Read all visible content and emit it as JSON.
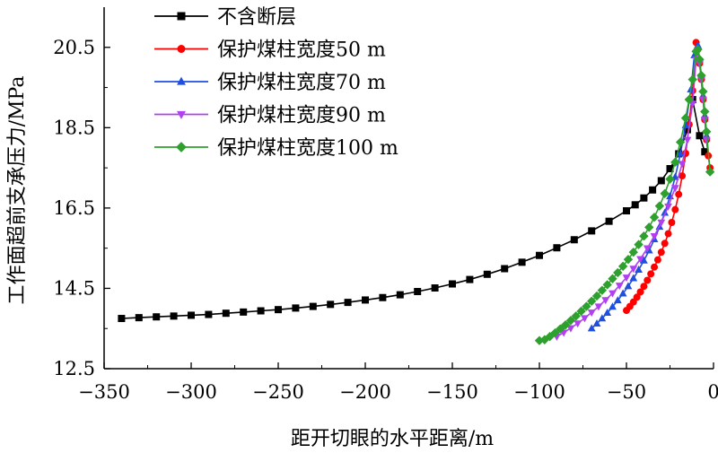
{
  "chart_data": {
    "type": "line",
    "xlabel": "距开切眼的水平距离/m",
    "ylabel": "工作面超前支承压力/MPa",
    "xlim": [
      -350,
      0
    ],
    "ylim": [
      12.5,
      21.5
    ],
    "xticks": [
      -350,
      -300,
      -250,
      -200,
      -150,
      -100,
      -50,
      0
    ],
    "xtick_labels": [
      "−350",
      "−300",
      "−250",
      "−200",
      "−150",
      "−100",
      "−50",
      "0"
    ],
    "yticks": [
      12.5,
      14.5,
      16.5,
      18.5,
      20.5
    ],
    "ytick_labels": [
      "12.5",
      "14.5",
      "16.5",
      "18.5",
      "20.5"
    ],
    "grid": false,
    "legend_position": "top-left",
    "series": [
      {
        "name": "不含断层",
        "color": "#000000",
        "marker": "square",
        "x": [
          -340,
          -330,
          -320,
          -310,
          -300,
          -290,
          -280,
          -270,
          -260,
          -250,
          -240,
          -230,
          -220,
          -210,
          -200,
          -190,
          -180,
          -170,
          -160,
          -150,
          -140,
          -130,
          -120,
          -110,
          -100,
          -90,
          -80,
          -70,
          -60,
          -50,
          -45,
          -40,
          -35,
          -30,
          -25,
          -20,
          -15,
          -12,
          -8,
          -5
        ],
        "y": [
          13.75,
          13.77,
          13.79,
          13.81,
          13.83,
          13.85,
          13.88,
          13.91,
          13.94,
          13.97,
          14.01,
          14.05,
          14.1,
          14.15,
          14.21,
          14.27,
          14.34,
          14.42,
          14.51,
          14.61,
          14.72,
          14.85,
          14.99,
          15.15,
          15.32,
          15.51,
          15.71,
          15.93,
          16.17,
          16.43,
          16.58,
          16.75,
          16.95,
          17.18,
          17.48,
          17.85,
          18.45,
          19.2,
          18.3,
          17.9
        ]
      },
      {
        "name": "保护煤柱宽度50 m",
        "color": "#ff0000",
        "marker": "circle",
        "x": [
          -50,
          -48,
          -46,
          -44,
          -42,
          -40,
          -38,
          -36,
          -34,
          -32,
          -30,
          -28,
          -26,
          -24,
          -22,
          -20,
          -18,
          -16,
          -14,
          -12,
          -10,
          -9,
          -8,
          -7,
          -6,
          -5,
          -4,
          -3,
          -2
        ],
        "y": [
          13.95,
          14.05,
          14.16,
          14.28,
          14.41,
          14.55,
          14.7,
          14.86,
          15.03,
          15.21,
          15.4,
          15.62,
          15.86,
          16.14,
          16.46,
          16.84,
          17.3,
          17.86,
          18.58,
          19.42,
          20.62,
          20.45,
          20.1,
          19.7,
          19.2,
          18.7,
          18.2,
          17.8,
          17.5
        ]
      },
      {
        "name": "保护煤柱宽度70 m",
        "color": "#1f4fe0",
        "marker": "triangle-up",
        "x": [
          -70,
          -67,
          -64,
          -61,
          -58,
          -55,
          -52,
          -49,
          -46,
          -43,
          -40,
          -37,
          -34,
          -31,
          -28,
          -25,
          -22,
          -19,
          -16,
          -13,
          -11,
          -9,
          -8,
          -7,
          -6,
          -5,
          -4
        ],
        "y": [
          13.5,
          13.62,
          13.75,
          13.89,
          14.04,
          14.2,
          14.37,
          14.55,
          14.75,
          14.96,
          15.19,
          15.44,
          15.72,
          16.03,
          16.38,
          16.79,
          17.27,
          17.85,
          18.56,
          19.45,
          20.3,
          20.55,
          20.2,
          19.8,
          19.3,
          18.8,
          18.3
        ]
      },
      {
        "name": "保护煤柱宽度90 m",
        "color": "#b040f0",
        "marker": "triangle-down",
        "x": [
          -90,
          -86,
          -82,
          -78,
          -74,
          -70,
          -66,
          -62,
          -58,
          -54,
          -50,
          -46,
          -42,
          -38,
          -34,
          -30,
          -26,
          -22,
          -18,
          -15,
          -12,
          -10,
          -9,
          -8,
          -7,
          -6,
          -5,
          -4
        ],
        "y": [
          13.3,
          13.4,
          13.51,
          13.63,
          13.76,
          13.9,
          14.05,
          14.21,
          14.38,
          14.57,
          14.77,
          14.99,
          15.23,
          15.5,
          15.8,
          16.14,
          16.54,
          17.0,
          17.6,
          18.2,
          19.1,
          20.2,
          20.4,
          20.1,
          19.7,
          19.2,
          18.7,
          18.2
        ]
      },
      {
        "name": "保护煤柱宽度100 m",
        "color": "#2ea02e",
        "marker": "diamond",
        "x": [
          -100,
          -97,
          -94,
          -91,
          -88,
          -85,
          -82,
          -79,
          -76,
          -73,
          -70,
          -67,
          -64,
          -61,
          -58,
          -55,
          -52,
          -49,
          -46,
          -43,
          -40,
          -37,
          -34,
          -31,
          -28,
          -25,
          -22,
          -19,
          -16,
          -14,
          -12,
          -10,
          -9,
          -8,
          -7,
          -6,
          -5,
          -4,
          -2
        ],
        "y": [
          13.2,
          13.22,
          13.3,
          13.39,
          13.49,
          13.59,
          13.7,
          13.81,
          13.93,
          14.05,
          14.18,
          14.31,
          14.45,
          14.59,
          14.74,
          14.89,
          15.05,
          15.22,
          15.4,
          15.59,
          15.8,
          16.02,
          16.27,
          16.55,
          16.86,
          17.22,
          17.64,
          18.14,
          18.74,
          19.2,
          19.7,
          20.4,
          20.45,
          20.2,
          19.8,
          19.4,
          18.9,
          18.4,
          17.4
        ]
      }
    ]
  }
}
